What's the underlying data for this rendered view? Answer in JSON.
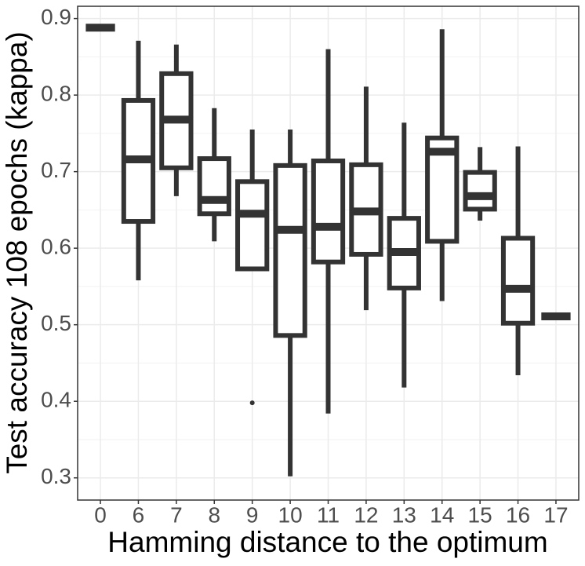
{
  "chart_data": {
    "type": "box",
    "x_label": "Hamming distance to the optimum",
    "y_label": "Test accuracy 108 epochs (kappa)",
    "categories": [
      "0",
      "6",
      "7",
      "8",
      "9",
      "10",
      "11",
      "12",
      "13",
      "14",
      "15",
      "16",
      "17"
    ],
    "min": [
      0.888,
      0.558,
      0.668,
      0.609,
      0.573,
      0.302,
      0.384,
      0.519,
      0.418,
      0.531,
      0.636,
      0.434,
      0.511
    ],
    "q1": [
      0.888,
      0.635,
      0.705,
      0.645,
      0.573,
      0.486,
      0.582,
      0.592,
      0.548,
      0.609,
      0.651,
      0.502,
      0.511
    ],
    "median": [
      0.888,
      0.716,
      0.768,
      0.663,
      0.645,
      0.624,
      0.628,
      0.648,
      0.595,
      0.726,
      0.668,
      0.547,
      0.511
    ],
    "q3": [
      0.888,
      0.793,
      0.828,
      0.717,
      0.687,
      0.708,
      0.714,
      0.709,
      0.639,
      0.744,
      0.699,
      0.613,
      0.511
    ],
    "max": [
      0.888,
      0.871,
      0.866,
      0.783,
      0.755,
      0.755,
      0.86,
      0.811,
      0.764,
      0.886,
      0.732,
      0.733,
      0.511
    ],
    "outliers": [
      {
        "x": "9",
        "y": 0.398
      }
    ],
    "color": "#333333",
    "ylim": [
      0.271,
      0.916
    ],
    "yticks": [
      0.3,
      0.4,
      0.5,
      0.6,
      0.7,
      0.8,
      0.9
    ],
    "y_minor_ticks": [
      0.35,
      0.45,
      0.55,
      0.65,
      0.75,
      0.85
    ],
    "grid": true
  }
}
